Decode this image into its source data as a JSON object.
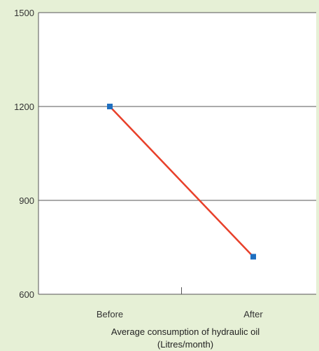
{
  "chart_data": {
    "type": "line",
    "categories": [
      "Before",
      "After"
    ],
    "series": [
      {
        "values": [
          1200,
          720
        ]
      }
    ],
    "xlabel_line1": "Average consumption of hydraulic oil",
    "xlabel_line2": "(Litres/month)",
    "ylabel": "",
    "ylim": [
      600,
      1500
    ],
    "yticks": [
      600,
      900,
      1200,
      1500
    ],
    "grid": true
  },
  "colors": {
    "background": "#e6f0d6",
    "plot_background": "#ffffff",
    "line": "#e8402a",
    "marker": "#1f6fc0",
    "grid": "#555555"
  }
}
